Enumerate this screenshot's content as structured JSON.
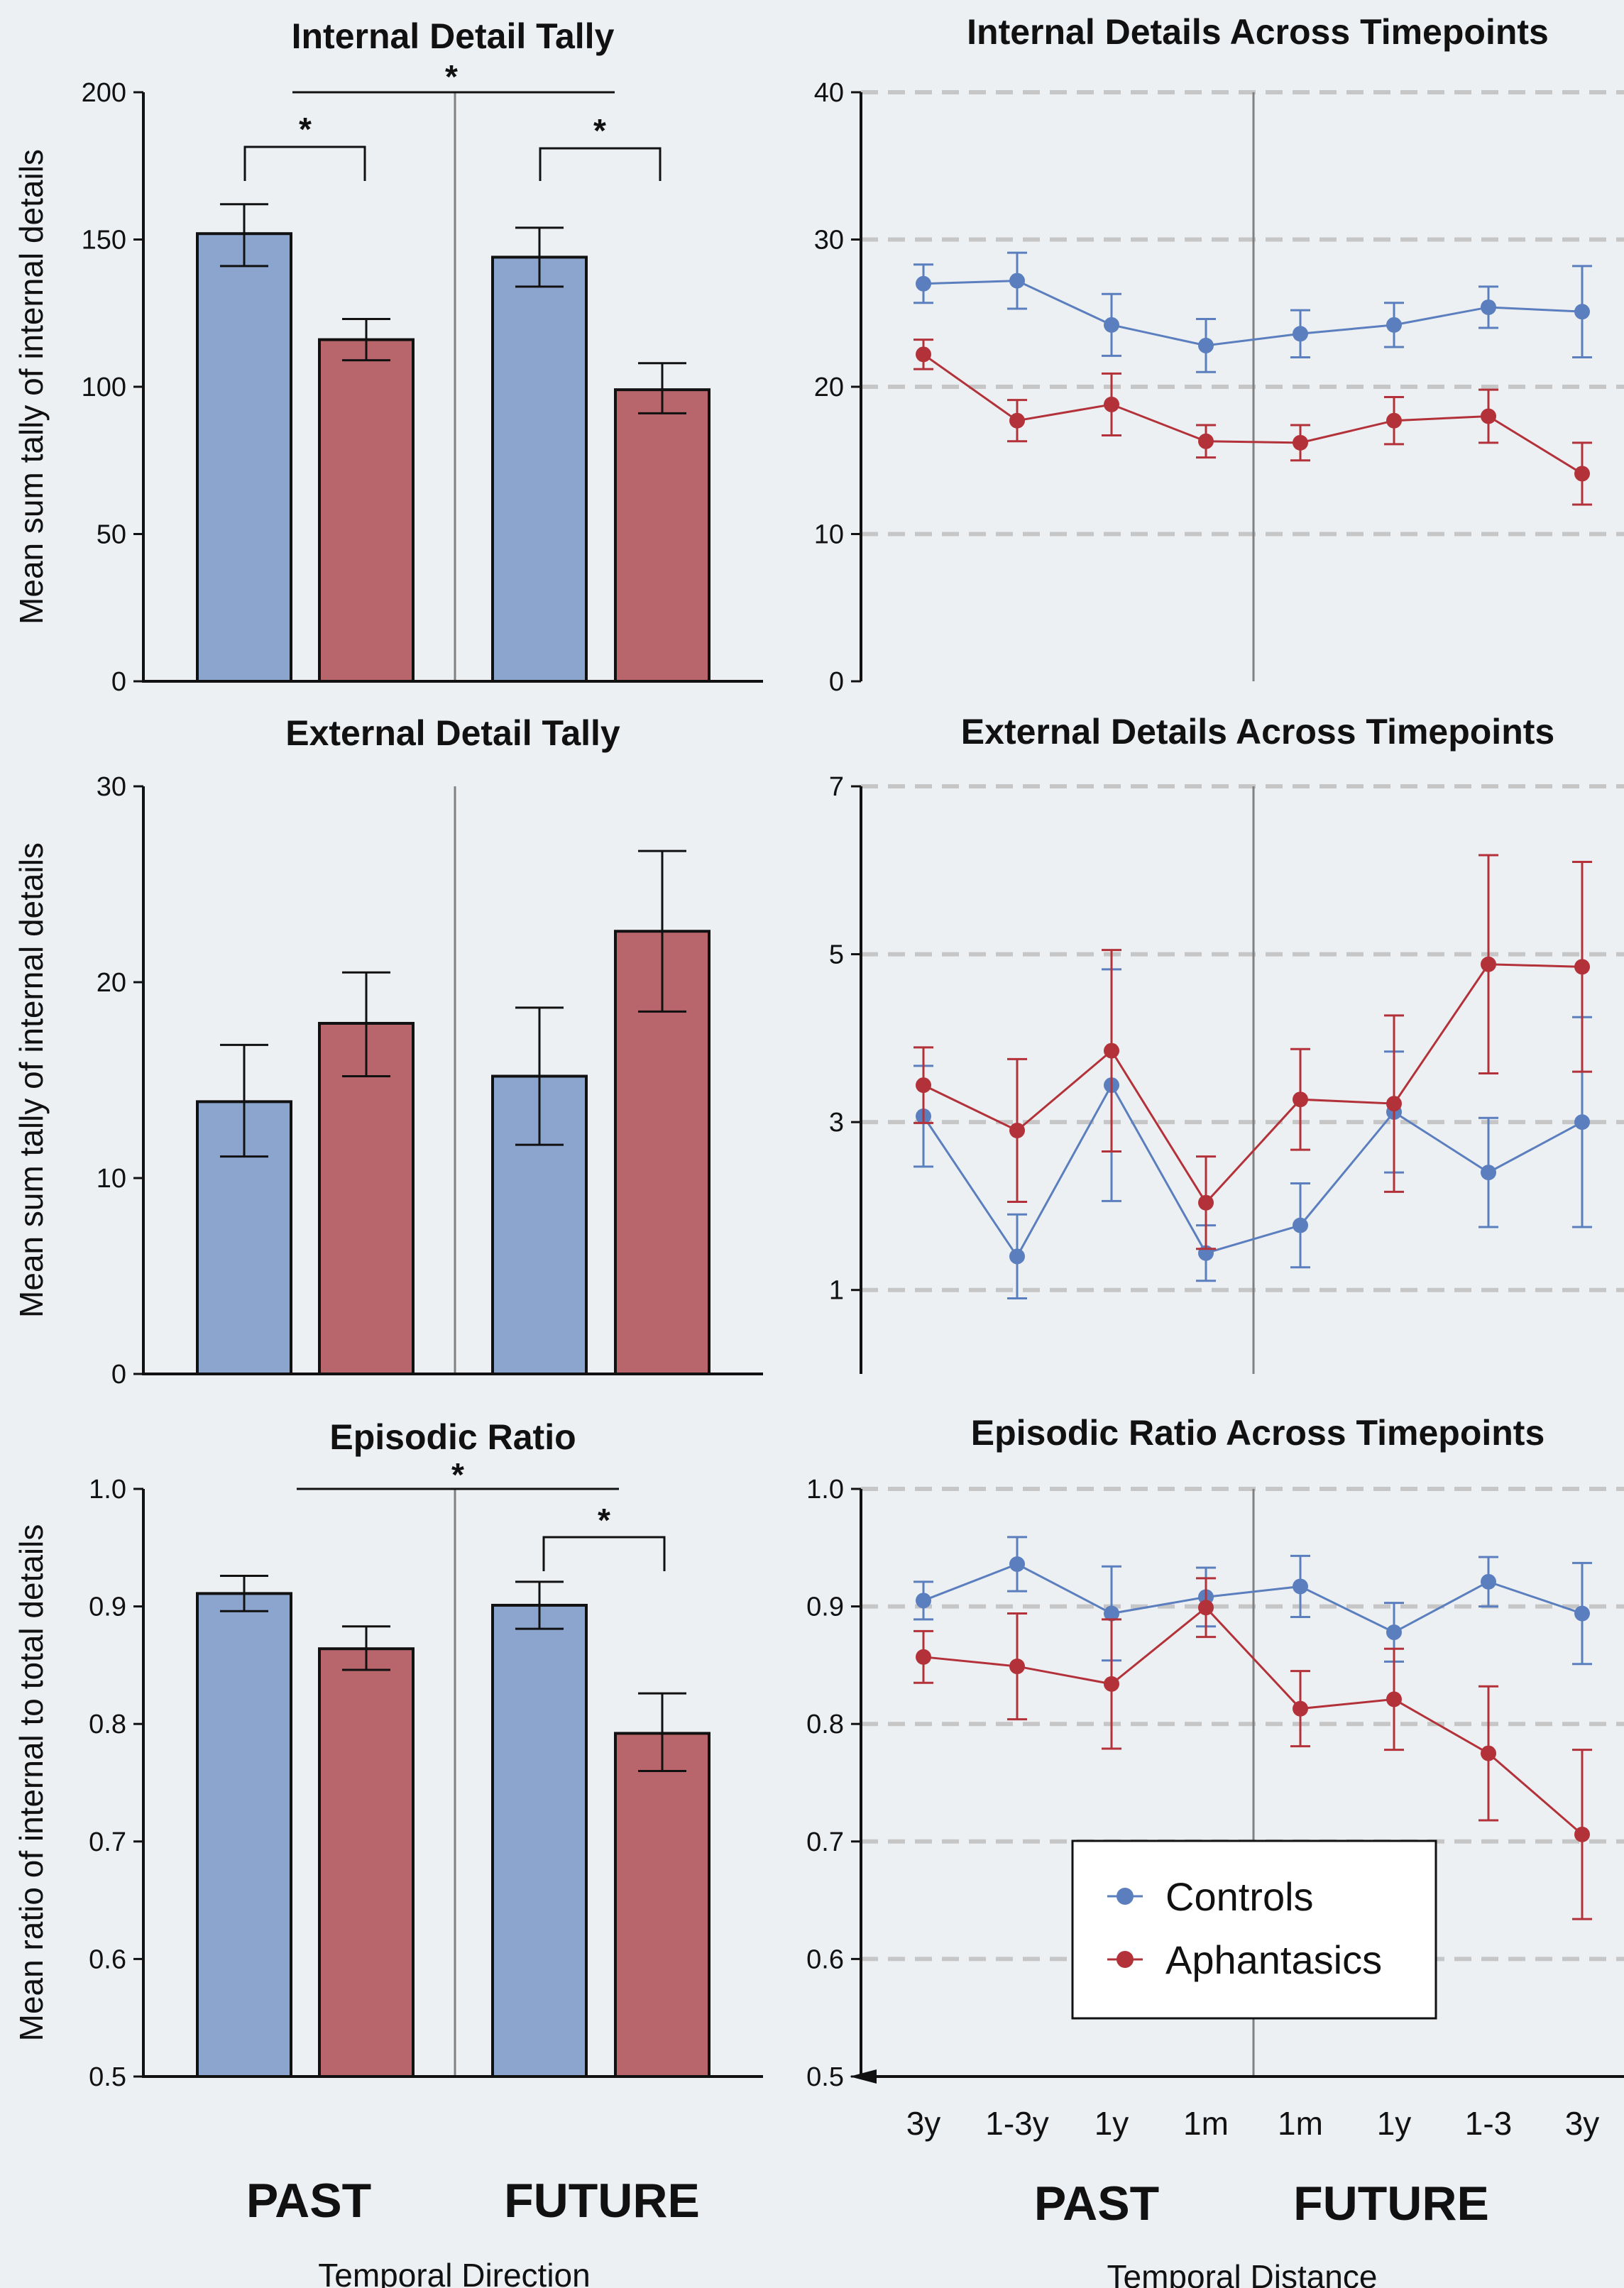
{
  "colors": {
    "controls": "#5b7fbe",
    "aphantasics": "#b3323a",
    "bar_controls": "#8ba5ce",
    "bar_aphantasics": "#b8666b",
    "grid": "#c6c6c6",
    "divider": "#808080",
    "axis": "#111111"
  },
  "labels": {
    "left_ylabel_top": "Mean sum tally of internal details",
    "left_ylabel_mid": "Mean sum tally of internal details",
    "left_ylabel_bottom": "Mean ratio of internal to total details",
    "left_past": "PAST",
    "left_future": "FUTURE",
    "left_xlabel": "Temporal Direction",
    "right_past": "PAST",
    "right_future": "FUTURE",
    "right_xlabel": "Temporal Distance",
    "sig_marker": "*",
    "legend_controls": "Controls",
    "legend_aphantasics": "Aphantasics"
  },
  "chart_data": [
    {
      "type": "bar",
      "title": "Internal Detail Tally",
      "ylabel": "Mean sum tally of internal details",
      "ylim": [
        0,
        200
      ],
      "yticks": [
        "0",
        "50",
        "100",
        "150",
        "200"
      ],
      "groups": [
        "PAST",
        "FUTURE"
      ],
      "series": [
        {
          "name": "Controls",
          "values": [
            152,
            144
          ],
          "err_low": [
            141,
            134
          ],
          "err_high": [
            162,
            154
          ]
        },
        {
          "name": "Aphantasics",
          "values": [
            116,
            99
          ],
          "err_low": [
            109,
            91
          ],
          "err_high": [
            123,
            108
          ]
        }
      ],
      "significance": [
        {
          "type": "between_directions",
          "label": "*"
        },
        {
          "type": "within_past",
          "label": "*"
        },
        {
          "type": "within_future",
          "label": "*"
        }
      ]
    },
    {
      "type": "bar",
      "title": "External Detail Tally",
      "ylabel": "Mean sum tally of internal details",
      "ylim": [
        0,
        30
      ],
      "yticks": [
        "0",
        "10",
        "20",
        "30"
      ],
      "groups": [
        "PAST",
        "FUTURE"
      ],
      "series": [
        {
          "name": "Controls",
          "values": [
            13.9,
            15.2
          ],
          "err_low": [
            11.1,
            11.7
          ],
          "err_high": [
            16.8,
            18.7
          ]
        },
        {
          "name": "Aphantasics",
          "values": [
            17.9,
            22.6
          ],
          "err_low": [
            15.2,
            18.5
          ],
          "err_high": [
            20.5,
            26.7
          ]
        }
      ],
      "significance": []
    },
    {
      "type": "bar",
      "title": "Episodic Ratio",
      "ylabel": "Mean ratio of internal to total details",
      "ylim": [
        0.5,
        1.0
      ],
      "yticks": [
        "0.5",
        "0.6",
        "0.7",
        "0.8",
        "0.9",
        "1.0"
      ],
      "groups": [
        "PAST",
        "FUTURE"
      ],
      "series": [
        {
          "name": "Controls",
          "values": [
            0.911,
            0.901
          ],
          "err_low": [
            0.896,
            0.881
          ],
          "err_high": [
            0.926,
            0.921
          ]
        },
        {
          "name": "Aphantasics",
          "values": [
            0.864,
            0.792
          ],
          "err_low": [
            0.846,
            0.76
          ],
          "err_high": [
            0.883,
            0.826
          ]
        }
      ],
      "significance": [
        {
          "type": "between_directions",
          "label": "*"
        },
        {
          "type": "within_future",
          "label": "*"
        }
      ]
    },
    {
      "type": "line",
      "title": "Internal Details Across Timepoints",
      "x": [
        "3y",
        "1-3y",
        "1y",
        "1m",
        "1m",
        "1y",
        "1-3",
        "3y"
      ],
      "ylim": [
        0,
        40
      ],
      "yticks": [
        "0",
        "10",
        "20",
        "30",
        "40"
      ],
      "grid": true,
      "series": [
        {
          "name": "Controls",
          "values": [
            27.0,
            27.2,
            24.2,
            22.8,
            23.6,
            24.2,
            25.4,
            25.1
          ],
          "err": [
            1.3,
            1.9,
            2.1,
            1.8,
            1.6,
            1.5,
            1.4,
            3.1
          ]
        },
        {
          "name": "Aphantasics",
          "values": [
            22.2,
            17.7,
            18.8,
            16.3,
            16.2,
            17.7,
            18.0,
            14.1
          ],
          "err": [
            1.0,
            1.4,
            2.1,
            1.1,
            1.2,
            1.6,
            1.8,
            2.1
          ]
        }
      ]
    },
    {
      "type": "line",
      "title": "External Details Across Timepoints",
      "x": [
        "3y",
        "1-3y",
        "1y",
        "1m",
        "1m",
        "1y",
        "1-3",
        "3y"
      ],
      "ylim": [
        0,
        7
      ],
      "yticks": [
        "1",
        "3",
        "5",
        "7"
      ],
      "grid": true,
      "series": [
        {
          "name": "Controls",
          "values": [
            3.07,
            1.4,
            3.44,
            1.44,
            1.77,
            3.12,
            2.4,
            3.0
          ],
          "err": [
            0.6,
            0.5,
            1.38,
            0.33,
            0.5,
            0.72,
            0.65,
            1.25
          ]
        },
        {
          "name": "Aphantasics",
          "values": [
            3.44,
            2.9,
            3.85,
            2.04,
            3.27,
            3.22,
            4.88,
            4.85
          ],
          "err": [
            0.45,
            0.85,
            1.2,
            0.55,
            0.6,
            1.05,
            1.3,
            1.25
          ]
        }
      ]
    },
    {
      "type": "line",
      "title": "Episodic Ratio Across Timepoints",
      "x": [
        "3y",
        "1-3y",
        "1y",
        "1m",
        "1m",
        "1y",
        "1-3",
        "3y"
      ],
      "ylim": [
        0.5,
        1.0
      ],
      "yticks": [
        "0.5",
        "0.6",
        "0.7",
        "0.8",
        "0.9",
        "1.0"
      ],
      "grid": true,
      "legend": "lower-center",
      "series": [
        {
          "name": "Controls",
          "values": [
            0.905,
            0.936,
            0.894,
            0.908,
            0.917,
            0.878,
            0.921,
            0.894
          ],
          "err": [
            0.016,
            0.023,
            0.04,
            0.025,
            0.026,
            0.025,
            0.021,
            0.043
          ]
        },
        {
          "name": "Aphantasics",
          "values": [
            0.857,
            0.849,
            0.834,
            0.899,
            0.813,
            0.821,
            0.775,
            0.706
          ],
          "err": [
            0.022,
            0.045,
            0.055,
            0.025,
            0.032,
            0.043,
            0.057,
            0.072
          ]
        }
      ]
    }
  ]
}
